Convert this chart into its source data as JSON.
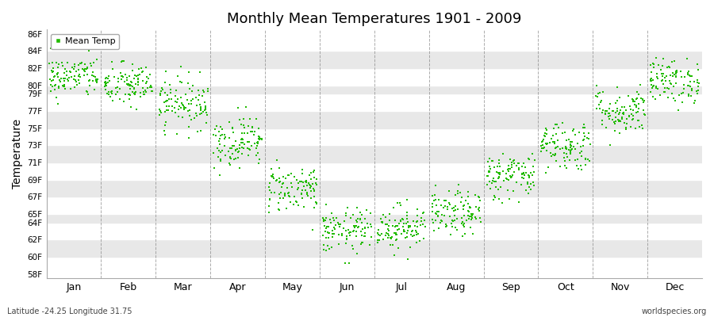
{
  "title": "Monthly Mean Temperatures 1901 - 2009",
  "ylabel": "Temperature",
  "yticks": [
    58,
    60,
    62,
    64,
    65,
    67,
    69,
    71,
    73,
    75,
    77,
    79,
    80,
    82,
    84,
    86
  ],
  "ytick_labels": [
    "58F",
    "60F",
    "62F",
    "64F",
    "65F",
    "67F",
    "69F",
    "71F",
    "73F",
    "75F",
    "77F",
    "79F",
    "80F",
    "82F",
    "84F",
    "86F"
  ],
  "ylim": [
    57.5,
    86.5
  ],
  "months": [
    "Jan",
    "Feb",
    "Mar",
    "Apr",
    "May",
    "Jun",
    "Jul",
    "Aug",
    "Sep",
    "Oct",
    "Nov",
    "Dec"
  ],
  "month_centers": [
    0.5,
    1.5,
    2.5,
    3.5,
    4.5,
    5.5,
    6.5,
    7.5,
    8.5,
    9.5,
    10.5,
    11.5
  ],
  "dot_color": "#22bb00",
  "dot_size": 4,
  "bg_color": "#ffffff",
  "band_color_white": "#ffffff",
  "band_color_gray": "#e8e8e8",
  "grid_line_color": "#888888",
  "legend_label": "Mean Temp",
  "subtitle_left": "Latitude -24.25 Longitude 31.75",
  "subtitle_right": "worldspecies.org",
  "mean_temps_by_month": [
    81.0,
    80.0,
    78.0,
    73.5,
    68.0,
    63.0,
    63.5,
    65.0,
    69.5,
    73.0,
    77.0,
    80.5
  ],
  "std_by_month": [
    1.2,
    1.3,
    1.5,
    1.5,
    1.4,
    1.3,
    1.3,
    1.3,
    1.4,
    1.5,
    1.4,
    1.3
  ],
  "n_years": 109,
  "random_seed": 42
}
